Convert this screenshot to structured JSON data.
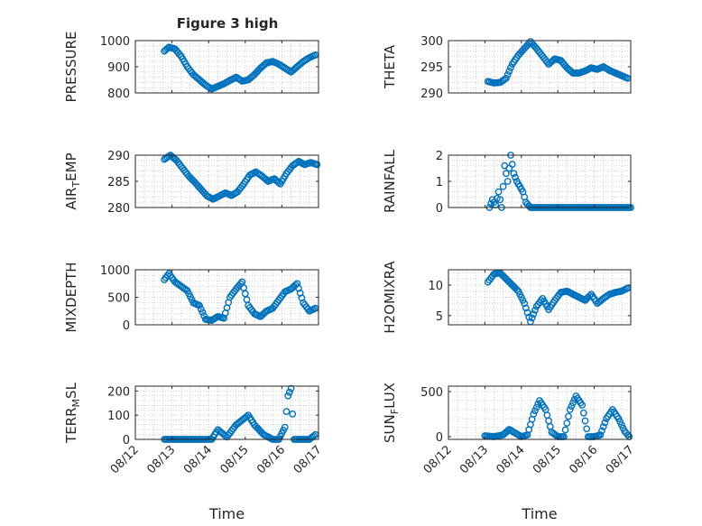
{
  "title": "Figure 3 high",
  "x_ticks": [
    "08/12",
    "08/13",
    "08/14",
    "08/15",
    "08/16",
    "08/17"
  ],
  "x_label": "Time",
  "marker_color": "#0072BD",
  "chart_data": [
    {
      "type": "scatter",
      "ylabel": "PRESSURE",
      "ylim": [
        800,
        1000
      ],
      "yticks": [
        "800",
        "900",
        "1000"
      ],
      "grid": "dotted",
      "x": [
        "2012-08-12T19:00",
        "2012-08-12T22:00",
        "2012-08-13T02:00",
        "2012-08-13T06:00",
        "2012-08-13T10:00",
        "2012-08-13T14:00",
        "2012-08-13T18:00",
        "2012-08-13T22:00",
        "2012-08-14T02:00",
        "2012-08-14T06:00",
        "2012-08-14T10:00",
        "2012-08-14T14:00",
        "2012-08-14T18:00",
        "2012-08-14T22:00",
        "2012-08-15T02:00",
        "2012-08-15T06:00",
        "2012-08-15T10:00",
        "2012-08-15T14:00",
        "2012-08-15T18:00",
        "2012-08-15T22:00",
        "2012-08-16T02:00",
        "2012-08-16T06:00",
        "2012-08-16T10:00",
        "2012-08-16T14:00",
        "2012-08-16T18:00",
        "2012-08-16T22:00"
      ],
      "y": [
        960,
        975,
        968,
        940,
        900,
        870,
        850,
        830,
        815,
        825,
        835,
        848,
        860,
        845,
        850,
        870,
        895,
        915,
        920,
        910,
        895,
        880,
        900,
        920,
        935,
        945
      ]
    },
    {
      "type": "scatter",
      "ylabel": "THETA",
      "ylim": [
        290,
        300
      ],
      "yticks": [
        "290",
        "295",
        "300"
      ],
      "grid": "dotted",
      "x": [
        "2012-08-13T02:00",
        "2012-08-13T06:00",
        "2012-08-13T10:00",
        "2012-08-13T14:00",
        "2012-08-13T18:00",
        "2012-08-13T22:00",
        "2012-08-14T02:00",
        "2012-08-14T06:00",
        "2012-08-14T10:00",
        "2012-08-14T14:00",
        "2012-08-14T18:00",
        "2012-08-14T22:00",
        "2012-08-15T02:00",
        "2012-08-15T06:00",
        "2012-08-15T10:00",
        "2012-08-15T14:00",
        "2012-08-15T18:00",
        "2012-08-15T22:00",
        "2012-08-16T02:00",
        "2012-08-16T06:00",
        "2012-08-16T10:00",
        "2012-08-16T14:00",
        "2012-08-16T18:00",
        "2012-08-16T22:00"
      ],
      "y": [
        292.2,
        291.9,
        292.0,
        292.8,
        295.5,
        297.2,
        298.5,
        299.8,
        298.5,
        297.0,
        295.5,
        296.5,
        296.2,
        294.8,
        293.8,
        293.8,
        294.2,
        294.8,
        294.5,
        295.0,
        294.3,
        293.8,
        293.3,
        292.8
      ]
    },
    {
      "type": "scatter",
      "ylabel": "AIR_TEMP",
      "ylim": [
        280,
        290
      ],
      "yticks": [
        "280",
        "285",
        "290"
      ],
      "grid": "dotted",
      "x": [
        "2012-08-12T19:00",
        "2012-08-12T23:00",
        "2012-08-13T03:00",
        "2012-08-13T07:00",
        "2012-08-13T11:00",
        "2012-08-13T15:00",
        "2012-08-13T19:00",
        "2012-08-13T23:00",
        "2012-08-14T03:00",
        "2012-08-14T07:00",
        "2012-08-14T11:00",
        "2012-08-14T15:00",
        "2012-08-14T19:00",
        "2012-08-14T23:00",
        "2012-08-15T03:00",
        "2012-08-15T07:00",
        "2012-08-15T11:00",
        "2012-08-15T15:00",
        "2012-08-15T19:00",
        "2012-08-15T23:00",
        "2012-08-16T03:00",
        "2012-08-16T07:00",
        "2012-08-16T11:00",
        "2012-08-16T15:00",
        "2012-08-16T19:00",
        "2012-08-16T23:00"
      ],
      "y": [
        289.2,
        290.0,
        289.0,
        287.5,
        286.0,
        284.8,
        283.5,
        282.2,
        281.6,
        282.2,
        282.8,
        282.3,
        283.0,
        284.5,
        286.2,
        286.8,
        286.0,
        285.0,
        285.5,
        284.5,
        286.5,
        288.0,
        288.8,
        288.2,
        288.6,
        288.2
      ]
    },
    {
      "type": "scatter",
      "ylabel": "RAINFALL",
      "ylim": [
        0,
        2
      ],
      "yticks": [
        "0",
        "1",
        "2"
      ],
      "grid": "dotted",
      "x": [
        "2012-08-13T03:00",
        "2012-08-13T05:00",
        "2012-08-13T07:00",
        "2012-08-13T09:00",
        "2012-08-13T11:00",
        "2012-08-13T13:00",
        "2012-08-13T15:00",
        "2012-08-13T17:00",
        "2012-08-13T19:00",
        "2012-08-13T21:00",
        "2012-08-13T23:00",
        "2012-08-14T01:00",
        "2012-08-14T03:00",
        "2012-08-14T06:00",
        "2012-08-14T12:00",
        "2012-08-14T18:00",
        "2012-08-15T00:00",
        "2012-08-15T06:00",
        "2012-08-15T12:00",
        "2012-08-15T18:00",
        "2012-08-16T00:00",
        "2012-08-16T06:00",
        "2012-08-16T12:00",
        "2012-08-16T18:00",
        "2012-08-17T00:00"
      ],
      "y": [
        0,
        0.3,
        0.1,
        0.6,
        0,
        1.6,
        1.0,
        2.0,
        1.3,
        1.0,
        0.8,
        0.6,
        0.2,
        0,
        0,
        0,
        0,
        0,
        0,
        0,
        0,
        0,
        0,
        0,
        0
      ]
    },
    {
      "type": "scatter",
      "ylabel": "MIXDEPTH",
      "ylim": [
        0,
        1000
      ],
      "yticks": [
        "0",
        "500",
        "1000"
      ],
      "grid": "dotted",
      "x": [
        "2012-08-12T19:00",
        "2012-08-12T22:00",
        "2012-08-13T02:00",
        "2012-08-13T06:00",
        "2012-08-13T10:00",
        "2012-08-13T14:00",
        "2012-08-13T18:00",
        "2012-08-13T22:00",
        "2012-08-14T02:00",
        "2012-08-14T06:00",
        "2012-08-14T10:00",
        "2012-08-14T14:00",
        "2012-08-14T18:00",
        "2012-08-14T22:00",
        "2012-08-15T02:00",
        "2012-08-15T06:00",
        "2012-08-15T10:00",
        "2012-08-15T14:00",
        "2012-08-15T18:00",
        "2012-08-15T22:00",
        "2012-08-16T02:00",
        "2012-08-16T06:00",
        "2012-08-16T10:00",
        "2012-08-16T14:00",
        "2012-08-16T18:00",
        "2012-08-16T22:00"
      ],
      "y": [
        820,
        930,
        780,
        700,
        620,
        400,
        350,
        100,
        80,
        150,
        120,
        500,
        650,
        780,
        350,
        200,
        150,
        250,
        300,
        450,
        600,
        650,
        750,
        400,
        250,
        300
      ]
    },
    {
      "type": "scatter",
      "ylabel": "H2OMIXRA",
      "ylim": [
        3.5,
        12.5
      ],
      "yticks": [
        "5",
        "10"
      ],
      "grid": "dotted",
      "x": [
        "2012-08-13T02:00",
        "2012-08-13T06:00",
        "2012-08-13T10:00",
        "2012-08-13T14:00",
        "2012-08-13T18:00",
        "2012-08-13T22:00",
        "2012-08-14T02:00",
        "2012-08-14T06:00",
        "2012-08-14T10:00",
        "2012-08-14T14:00",
        "2012-08-14T18:00",
        "2012-08-14T22:00",
        "2012-08-15T02:00",
        "2012-08-15T06:00",
        "2012-08-15T10:00",
        "2012-08-15T14:00",
        "2012-08-15T18:00",
        "2012-08-15T22:00",
        "2012-08-16T02:00",
        "2012-08-16T06:00",
        "2012-08-16T10:00",
        "2012-08-16T14:00",
        "2012-08-16T18:00",
        "2012-08-16T22:00"
      ],
      "y": [
        10.5,
        11.8,
        12.0,
        11.0,
        10.0,
        9.0,
        7.0,
        4.0,
        6.5,
        7.8,
        6.0,
        7.5,
        8.8,
        9.0,
        8.5,
        8.0,
        7.5,
        8.5,
        7.0,
        7.8,
        8.5,
        8.8,
        9.0,
        9.5
      ]
    },
    {
      "type": "scatter",
      "ylabel": "TERR_MSL",
      "ylim": [
        0,
        220
      ],
      "yticks": [
        "0",
        "100",
        "200"
      ],
      "grid": "dotted",
      "x": [
        "2012-08-12T19:00",
        "2012-08-13T06:00",
        "2012-08-13T18:00",
        "2012-08-14T02:00",
        "2012-08-14T06:00",
        "2012-08-14T12:00",
        "2012-08-14T18:00",
        "2012-08-14T22:00",
        "2012-08-15T02:00",
        "2012-08-15T06:00",
        "2012-08-15T12:00",
        "2012-08-15T18:00",
        "2012-08-15T22:00",
        "2012-08-16T02:00",
        "2012-08-16T04:00",
        "2012-08-16T06:00",
        "2012-08-16T08:00",
        "2012-08-16T12:00",
        "2012-08-16T18:00",
        "2012-08-16T22:00"
      ],
      "y": [
        0,
        0,
        0,
        0,
        40,
        10,
        60,
        80,
        100,
        60,
        20,
        0,
        0,
        50,
        180,
        210,
        0,
        0,
        0,
        20
      ]
    },
    {
      "type": "scatter",
      "ylabel": "SUN_FLUX",
      "ylim": [
        -30,
        560
      ],
      "yticks": [
        "0",
        "500"
      ],
      "grid": "dotted",
      "x": [
        "2012-08-13T00:00",
        "2012-08-13T06:00",
        "2012-08-13T12:00",
        "2012-08-13T16:00",
        "2012-08-13T20:00",
        "2012-08-14T00:00",
        "2012-08-14T04:00",
        "2012-08-14T08:00",
        "2012-08-14T12:00",
        "2012-08-14T16:00",
        "2012-08-14T20:00",
        "2012-08-15T00:00",
        "2012-08-15T04:00",
        "2012-08-15T08:00",
        "2012-08-15T12:00",
        "2012-08-15T16:00",
        "2012-08-15T20:00",
        "2012-08-16T00:00",
        "2012-08-16T04:00",
        "2012-08-16T08:00",
        "2012-08-16T12:00",
        "2012-08-16T16:00",
        "2012-08-16T20:00",
        "2012-08-16T23:00"
      ],
      "y": [
        10,
        0,
        20,
        80,
        40,
        0,
        20,
        250,
        400,
        300,
        50,
        0,
        0,
        300,
        450,
        350,
        0,
        0,
        20,
        200,
        300,
        200,
        60,
        0
      ]
    }
  ]
}
